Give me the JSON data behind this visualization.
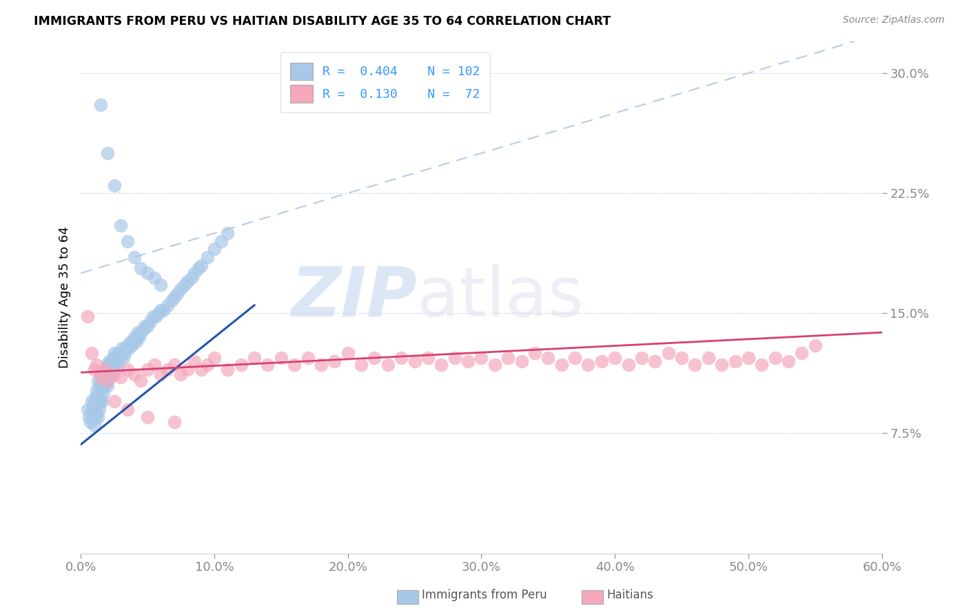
{
  "title": "IMMIGRANTS FROM PERU VS HAITIAN DISABILITY AGE 35 TO 64 CORRELATION CHART",
  "source": "Source: ZipAtlas.com",
  "ylabel": "Disability Age 35 to 64",
  "ytick_labels": [
    "7.5%",
    "15.0%",
    "22.5%",
    "30.0%"
  ],
  "ytick_values": [
    0.075,
    0.15,
    0.225,
    0.3
  ],
  "xlim": [
    0.0,
    0.6
  ],
  "ylim": [
    0.0,
    0.32
  ],
  "legend_peru_R": "0.404",
  "legend_peru_N": "102",
  "legend_haiti_R": "0.130",
  "legend_haiti_N": "72",
  "peru_color": "#a8c8e8",
  "haiti_color": "#f5a8bc",
  "peru_line_color": "#2255aa",
  "haiti_line_color": "#d84070",
  "dashed_line_color": "#b8cce4",
  "background_color": "#ffffff",
  "watermark_zip": "ZIP",
  "watermark_atlas": "atlas",
  "xtick_vals": [
    0.0,
    0.1,
    0.2,
    0.3,
    0.4,
    0.5,
    0.6
  ],
  "xtick_labs": [
    "0.0%",
    "10.0%",
    "20.0%",
    "30.0%",
    "40.0%",
    "50.0%",
    "60.0%"
  ],
  "peru_scatter_x": [
    0.005,
    0.006,
    0.007,
    0.008,
    0.008,
    0.009,
    0.009,
    0.01,
    0.01,
    0.01,
    0.011,
    0.011,
    0.011,
    0.012,
    0.012,
    0.012,
    0.013,
    0.013,
    0.013,
    0.014,
    0.014,
    0.014,
    0.015,
    0.015,
    0.015,
    0.016,
    0.016,
    0.016,
    0.017,
    0.017,
    0.018,
    0.018,
    0.019,
    0.019,
    0.02,
    0.02,
    0.02,
    0.021,
    0.021,
    0.022,
    0.022,
    0.023,
    0.023,
    0.024,
    0.024,
    0.025,
    0.025,
    0.026,
    0.027,
    0.028,
    0.028,
    0.029,
    0.03,
    0.031,
    0.032,
    0.033,
    0.034,
    0.035,
    0.036,
    0.037,
    0.038,
    0.039,
    0.04,
    0.041,
    0.042,
    0.043,
    0.044,
    0.045,
    0.047,
    0.048,
    0.05,
    0.052,
    0.054,
    0.056,
    0.058,
    0.06,
    0.062,
    0.065,
    0.068,
    0.07,
    0.072,
    0.075,
    0.078,
    0.08,
    0.083,
    0.085,
    0.088,
    0.09,
    0.095,
    0.1,
    0.105,
    0.11,
    0.015,
    0.02,
    0.025,
    0.03,
    0.035,
    0.04,
    0.045,
    0.05,
    0.055,
    0.06
  ],
  "peru_scatter_y": [
    0.09,
    0.085,
    0.082,
    0.095,
    0.088,
    0.092,
    0.085,
    0.095,
    0.088,
    0.08,
    0.092,
    0.098,
    0.085,
    0.095,
    0.102,
    0.088,
    0.095,
    0.108,
    0.085,
    0.098,
    0.105,
    0.09,
    0.11,
    0.102,
    0.095,
    0.112,
    0.105,
    0.095,
    0.108,
    0.1,
    0.112,
    0.105,
    0.115,
    0.108,
    0.118,
    0.112,
    0.105,
    0.12,
    0.112,
    0.118,
    0.11,
    0.12,
    0.112,
    0.122,
    0.115,
    0.125,
    0.118,
    0.12,
    0.122,
    0.125,
    0.118,
    0.122,
    0.125,
    0.128,
    0.122,
    0.125,
    0.128,
    0.13,
    0.128,
    0.132,
    0.13,
    0.132,
    0.135,
    0.132,
    0.135,
    0.138,
    0.135,
    0.138,
    0.14,
    0.142,
    0.142,
    0.145,
    0.148,
    0.148,
    0.15,
    0.152,
    0.152,
    0.155,
    0.158,
    0.16,
    0.162,
    0.165,
    0.168,
    0.17,
    0.172,
    0.175,
    0.178,
    0.18,
    0.185,
    0.19,
    0.195,
    0.2,
    0.28,
    0.25,
    0.23,
    0.205,
    0.195,
    0.185,
    0.178,
    0.175,
    0.172,
    0.168
  ],
  "haiti_scatter_x": [
    0.005,
    0.008,
    0.01,
    0.012,
    0.015,
    0.018,
    0.02,
    0.025,
    0.03,
    0.035,
    0.04,
    0.045,
    0.05,
    0.055,
    0.06,
    0.065,
    0.07,
    0.075,
    0.08,
    0.085,
    0.09,
    0.095,
    0.1,
    0.11,
    0.12,
    0.13,
    0.14,
    0.15,
    0.16,
    0.17,
    0.18,
    0.19,
    0.2,
    0.21,
    0.22,
    0.23,
    0.24,
    0.25,
    0.26,
    0.27,
    0.28,
    0.29,
    0.3,
    0.31,
    0.32,
    0.33,
    0.34,
    0.35,
    0.36,
    0.37,
    0.38,
    0.39,
    0.4,
    0.41,
    0.42,
    0.43,
    0.44,
    0.45,
    0.46,
    0.47,
    0.48,
    0.49,
    0.5,
    0.51,
    0.52,
    0.53,
    0.54,
    0.55,
    0.025,
    0.035,
    0.05,
    0.07
  ],
  "haiti_scatter_y": [
    0.148,
    0.125,
    0.115,
    0.118,
    0.11,
    0.115,
    0.108,
    0.112,
    0.11,
    0.115,
    0.112,
    0.108,
    0.115,
    0.118,
    0.112,
    0.115,
    0.118,
    0.112,
    0.115,
    0.12,
    0.115,
    0.118,
    0.122,
    0.115,
    0.118,
    0.122,
    0.118,
    0.122,
    0.118,
    0.122,
    0.118,
    0.12,
    0.125,
    0.118,
    0.122,
    0.118,
    0.122,
    0.12,
    0.122,
    0.118,
    0.122,
    0.12,
    0.122,
    0.118,
    0.122,
    0.12,
    0.125,
    0.122,
    0.118,
    0.122,
    0.118,
    0.12,
    0.122,
    0.118,
    0.122,
    0.12,
    0.125,
    0.122,
    0.118,
    0.122,
    0.118,
    0.12,
    0.122,
    0.118,
    0.122,
    0.12,
    0.125,
    0.13,
    0.095,
    0.09,
    0.085,
    0.082
  ]
}
